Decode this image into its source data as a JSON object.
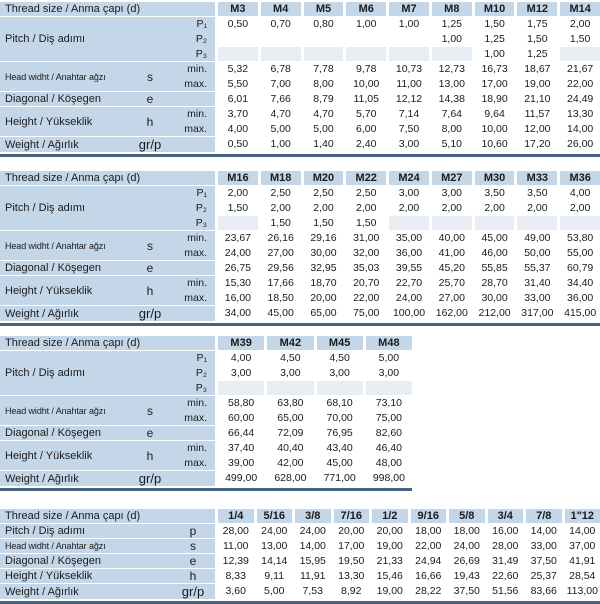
{
  "colors": {
    "label_and_header_bg": "#c4d7e9",
    "shaded_empty_cell_bg": "#e8edf3",
    "table_bottom_rule": "#46627c",
    "text": "#1b1b1b"
  },
  "tables": [
    {
      "name": "metric-m3-m14",
      "header_label": "Thread size / Anma çapı (d)",
      "columns": [
        "M3",
        "M4",
        "M5",
        "M6",
        "M7",
        "M8",
        "M10",
        "M12",
        "M14"
      ],
      "groups": [
        {
          "label": "Pitch / Diş adımı",
          "symbol": "",
          "rows": [
            {
              "sublabel": "P₁",
              "shade_empty": false,
              "values": [
                "0,50",
                "0,70",
                "0,80",
                "1,00",
                "1,00",
                "1,25",
                "1,50",
                "1,75",
                "2,00"
              ]
            },
            {
              "sublabel": "P₂",
              "shade_empty": false,
              "values": [
                "",
                "",
                "",
                "",
                "",
                "1,00",
                "1,25",
                "1,50",
                "1,50"
              ]
            },
            {
              "sublabel": "P₃",
              "shade_empty": true,
              "values": [
                "",
                "",
                "",
                "",
                "",
                "",
                "1,00",
                "1,25",
                ""
              ]
            }
          ]
        },
        {
          "label": "Head widht / Anahtar ağzı",
          "symbol": "s",
          "rows": [
            {
              "sublabel": "min.",
              "shade_empty": false,
              "values": [
                "5,32",
                "6,78",
                "7,78",
                "9,78",
                "10,73",
                "12,73",
                "16,73",
                "18,67",
                "21,67"
              ]
            },
            {
              "sublabel": "max.",
              "shade_empty": false,
              "values": [
                "5,50",
                "7,00",
                "8,00",
                "10,00",
                "11,00",
                "13,00",
                "17,00",
                "19,00",
                "22,00"
              ]
            }
          ]
        },
        {
          "label": "Diagonal / Köşegen",
          "symbol": "e",
          "rows": [
            {
              "sublabel": "",
              "shade_empty": false,
              "values": [
                "6,01",
                "7,66",
                "8,79",
                "11,05",
                "12,12",
                "14,38",
                "18,90",
                "21,10",
                "24,49"
              ]
            }
          ]
        },
        {
          "label": "Height / Yükseklik",
          "symbol": "h",
          "rows": [
            {
              "sublabel": "min.",
              "shade_empty": false,
              "values": [
                "3,70",
                "4,70",
                "4,70",
                "5,70",
                "7,14",
                "7,64",
                "9,64",
                "11,57",
                "13,30"
              ]
            },
            {
              "sublabel": "max.",
              "shade_empty": false,
              "values": [
                "4,00",
                "5,00",
                "5,00",
                "6,00",
                "7,50",
                "8,00",
                "10,00",
                "12,00",
                "14,00"
              ]
            }
          ]
        },
        {
          "label": "Weight / Ağırlık",
          "symbol": "gr/p",
          "rows": [
            {
              "sublabel": "",
              "shade_empty": false,
              "values": [
                "0,50",
                "1,00",
                "1,40",
                "2,40",
                "3,00",
                "5,10",
                "10,60",
                "17,20",
                "26,00"
              ]
            }
          ]
        }
      ]
    },
    {
      "name": "metric-m16-m36",
      "header_label": "Thread size / Anma çapı (d)",
      "columns": [
        "M16",
        "M18",
        "M20",
        "M22",
        "M24",
        "M27",
        "M30",
        "M33",
        "M36"
      ],
      "groups": [
        {
          "label": "Pitch / Diş adımı",
          "symbol": "",
          "rows": [
            {
              "sublabel": "P₁",
              "shade_empty": false,
              "values": [
                "2,00",
                "2,50",
                "2,50",
                "2,50",
                "3,00",
                "3,00",
                "3,50",
                "3,50",
                "4,00"
              ]
            },
            {
              "sublabel": "P₂",
              "shade_empty": false,
              "values": [
                "1,50",
                "2,00",
                "2,00",
                "2,00",
                "2,00",
                "2,00",
                "2,00",
                "2,00",
                "2,00"
              ]
            },
            {
              "sublabel": "P₃",
              "shade_empty": true,
              "values": [
                "",
                "1,50",
                "1,50",
                "1,50",
                "",
                "",
                "",
                "",
                ""
              ]
            }
          ]
        },
        {
          "label": "Head widht / Anahtar ağzı",
          "symbol": "s",
          "rows": [
            {
              "sublabel": "min.",
              "shade_empty": false,
              "values": [
                "23,67",
                "26,16",
                "29,16",
                "31,00",
                "35,00",
                "40,00",
                "45,00",
                "49,00",
                "53,80"
              ]
            },
            {
              "sublabel": "max.",
              "shade_empty": false,
              "values": [
                "24,00",
                "27,00",
                "30,00",
                "32,00",
                "36,00",
                "41,00",
                "46,00",
                "50,00",
                "55,00"
              ]
            }
          ]
        },
        {
          "label": "Diagonal / Köşegen",
          "symbol": "e",
          "rows": [
            {
              "sublabel": "",
              "shade_empty": false,
              "values": [
                "26,75",
                "29,56",
                "32,95",
                "35,03",
                "39,55",
                "45,20",
                "55,85",
                "55,37",
                "60,79"
              ]
            }
          ]
        },
        {
          "label": "Height / Yükseklik",
          "symbol": "h",
          "rows": [
            {
              "sublabel": "min.",
              "shade_empty": false,
              "values": [
                "15,30",
                "17,66",
                "18,70",
                "20,70",
                "22,70",
                "25,70",
                "28,70",
                "31,40",
                "34,40"
              ]
            },
            {
              "sublabel": "max.",
              "shade_empty": false,
              "values": [
                "16,00",
                "18,50",
                "20,00",
                "22,00",
                "24,00",
                "27,00",
                "30,00",
                "33,00",
                "36,00"
              ]
            }
          ]
        },
        {
          "label": "Weight / Ağırlık",
          "symbol": "gr/p",
          "rows": [
            {
              "sublabel": "",
              "shade_empty": false,
              "values": [
                "34,00",
                "45,00",
                "65,00",
                "75,00",
                "100,00",
                "162,00",
                "212,00",
                "317,00",
                "415,00"
              ]
            }
          ]
        }
      ]
    },
    {
      "name": "metric-m39-m48",
      "narrow": true,
      "header_label": "Thread size / Anma çapı (d)",
      "columns": [
        "M39",
        "M42",
        "M45",
        "M48"
      ],
      "groups": [
        {
          "label": "Pitch / Diş adımı",
          "symbol": "",
          "rows": [
            {
              "sublabel": "P₁",
              "shade_empty": false,
              "values": [
                "4,00",
                "4,50",
                "4,50",
                "5,00"
              ]
            },
            {
              "sublabel": "P₂",
              "shade_empty": false,
              "values": [
                "3,00",
                "3,00",
                "3,00",
                "3,00"
              ]
            },
            {
              "sublabel": "P₃",
              "shade_empty": true,
              "values": [
                "",
                "",
                "",
                ""
              ]
            }
          ]
        },
        {
          "label": "Head widht / Anahtar ağzı",
          "symbol": "s",
          "rows": [
            {
              "sublabel": "min.",
              "shade_empty": false,
              "values": [
                "58,80",
                "63,80",
                "68,10",
                "73,10"
              ]
            },
            {
              "sublabel": "max.",
              "shade_empty": false,
              "values": [
                "60,00",
                "65,00",
                "70,00",
                "75,00"
              ]
            }
          ]
        },
        {
          "label": "Diagonal / Köşegen",
          "symbol": "e",
          "rows": [
            {
              "sublabel": "",
              "shade_empty": false,
              "values": [
                "66,44",
                "72,09",
                "76,95",
                "82,60"
              ]
            }
          ]
        },
        {
          "label": "Height / Yükseklik",
          "symbol": "h",
          "rows": [
            {
              "sublabel": "min.",
              "shade_empty": false,
              "values": [
                "37,40",
                "40,40",
                "43,40",
                "46,40"
              ]
            },
            {
              "sublabel": "max.",
              "shade_empty": false,
              "values": [
                "39,00",
                "42,00",
                "45,00",
                "48,00"
              ]
            }
          ]
        },
        {
          "label": "Weight / Ağırlık",
          "symbol": "gr/p",
          "rows": [
            {
              "sublabel": "",
              "shade_empty": false,
              "values": [
                "499,00",
                "628,00",
                "771,00",
                "998,00"
              ]
            }
          ]
        }
      ]
    },
    {
      "name": "imperial",
      "imperial": true,
      "header_label": "Thread size / Anma çapı (d)",
      "columns": [
        "1/4",
        "5/16",
        "3/8",
        "7/16",
        "1/2",
        "9/16",
        "5/8",
        "3/4",
        "7/8",
        "1\"12"
      ],
      "groups": [
        {
          "label": "Pitch / Diş adımı",
          "symbol": "p",
          "rows": [
            {
              "sublabel": "",
              "shade_empty": false,
              "values": [
                "28,00",
                "24,00",
                "24,00",
                "20,00",
                "20,00",
                "18,00",
                "18,00",
                "16,00",
                "14,00",
                "14,00"
              ]
            }
          ]
        },
        {
          "label": "Head widht / Anahtar ağzı",
          "symbol": "s",
          "rows": [
            {
              "sublabel": "",
              "shade_empty": false,
              "values": [
                "11,00",
                "13,00",
                "14,00",
                "17,00",
                "19,00",
                "22,00",
                "24,00",
                "28,00",
                "33,00",
                "37,00"
              ]
            }
          ]
        },
        {
          "label": "Diagonal / Köşegen",
          "symbol": "e",
          "rows": [
            {
              "sublabel": "",
              "shade_empty": false,
              "values": [
                "12,39",
                "14,14",
                "15,95",
                "19,50",
                "21,33",
                "24,94",
                "26,69",
                "31,49",
                "37,50",
                "41,91"
              ]
            }
          ]
        },
        {
          "label": "Height / Yükseklik",
          "symbol": "h",
          "rows": [
            {
              "sublabel": "",
              "shade_empty": false,
              "values": [
                "8,33",
                "9,11",
                "11,91",
                "13,30",
                "15,46",
                "16,66",
                "19,43",
                "22,60",
                "25,37",
                "28,54"
              ]
            }
          ]
        },
        {
          "label": "Weight / Ağırlık",
          "symbol": "gr/p",
          "rows": [
            {
              "sublabel": "",
              "shade_empty": false,
              "values": [
                "3,60",
                "5,00",
                "7,53",
                "8,92",
                "19,00",
                "28,22",
                "37,50",
                "51,56",
                "83,66",
                "113,00"
              ]
            }
          ]
        }
      ]
    }
  ]
}
